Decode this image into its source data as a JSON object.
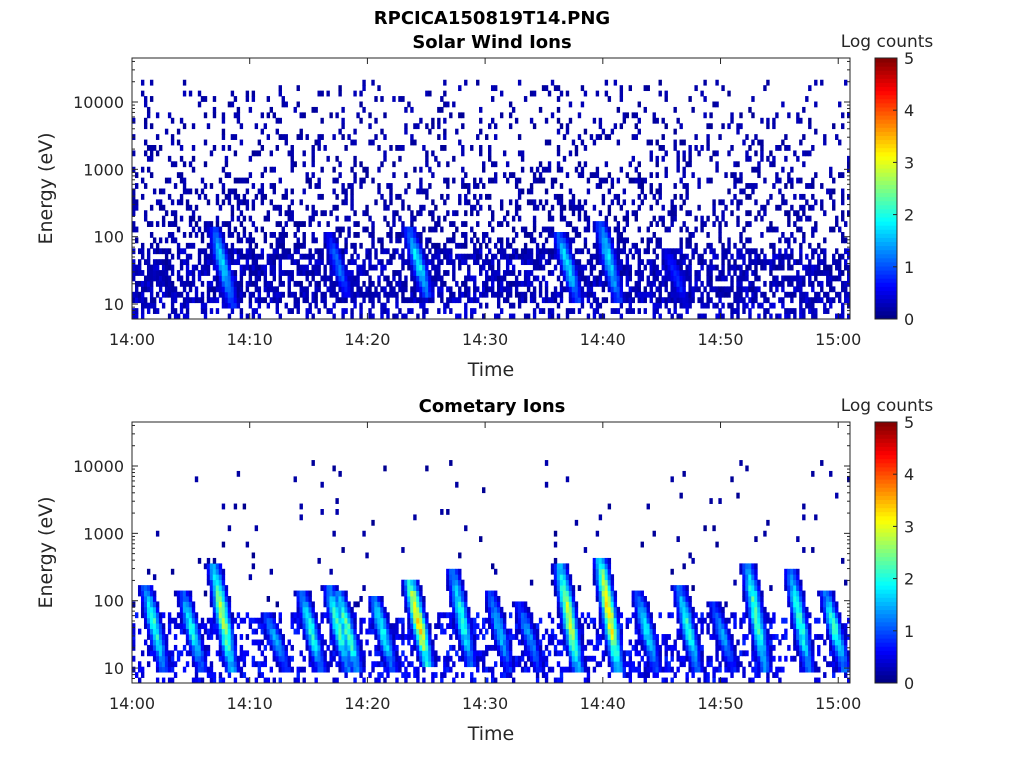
{
  "figure": {
    "title": "RPCICA150819T14.PNG"
  },
  "colorbar": {
    "label": "Log counts",
    "ticks": [
      "0",
      "1",
      "2",
      "3",
      "4",
      "5"
    ],
    "range": [
      0,
      5
    ],
    "colormap": "jet"
  },
  "chart_data": [
    {
      "type": "heatmap",
      "title": "Solar Wind Ions",
      "xlabel": "Time",
      "ylabel": "Energy (eV)",
      "x_ticks": [
        "14:00",
        "14:10",
        "14:20",
        "14:30",
        "14:40",
        "14:50",
        "15:00"
      ],
      "x_range_minutes": [
        0,
        61
      ],
      "y_scale": "log",
      "y_ticks": [
        "10",
        "100",
        "1000",
        "10000"
      ],
      "y_range": [
        6,
        45000
      ],
      "value_label": "Log counts",
      "value_range": [
        0,
        5
      ],
      "background_level": 0.3,
      "noise": {
        "energy_range": [
          10,
          20000
        ],
        "level": 0.2
      },
      "features": [
        {
          "time_min": 7.0,
          "energy_high": 130,
          "energy_low": 12,
          "peak": 1.9
        },
        {
          "time_min": 16.8,
          "energy_high": 100,
          "energy_low": 15,
          "peak": 1.3
        },
        {
          "time_min": 23.6,
          "energy_high": 120,
          "energy_low": 15,
          "peak": 2.1
        },
        {
          "time_min": 36.3,
          "energy_high": 110,
          "energy_low": 14,
          "peak": 2.0
        },
        {
          "time_min": 39.8,
          "energy_high": 160,
          "energy_low": 14,
          "peak": 2.0
        },
        {
          "time_min": 45.5,
          "energy_high": 60,
          "energy_low": 12,
          "peak": 1.0
        }
      ]
    },
    {
      "type": "heatmap",
      "title": "Cometary Ions",
      "xlabel": "Time",
      "ylabel": "Energy (eV)",
      "x_ticks": [
        "14:00",
        "14:10",
        "14:20",
        "14:30",
        "14:40",
        "14:50",
        "15:00"
      ],
      "x_range_minutes": [
        0,
        61
      ],
      "y_scale": "log",
      "y_ticks": [
        "10",
        "100",
        "1000",
        "10000"
      ],
      "y_range": [
        6,
        45000
      ],
      "value_label": "Log counts",
      "value_range": [
        0,
        5
      ],
      "background_level": 0.5,
      "noise": {
        "energy_range": [
          80,
          12000
        ],
        "level": 0.15
      },
      "features": [
        {
          "time_min": 1.2,
          "energy_high": 150,
          "energy_low": 12,
          "peak": 2.4
        },
        {
          "time_min": 4.4,
          "energy_high": 120,
          "energy_low": 12,
          "peak": 2.2
        },
        {
          "time_min": 7.0,
          "energy_high": 300,
          "energy_low": 12,
          "peak": 3.1
        },
        {
          "time_min": 11.5,
          "energy_high": 60,
          "energy_low": 12,
          "peak": 1.8
        },
        {
          "time_min": 14.5,
          "energy_high": 120,
          "energy_low": 12,
          "peak": 2.3
        },
        {
          "time_min": 16.8,
          "energy_high": 150,
          "energy_low": 12,
          "peak": 2.5
        },
        {
          "time_min": 17.6,
          "energy_high": 120,
          "energy_low": 12,
          "peak": 2.7
        },
        {
          "time_min": 20.6,
          "energy_high": 110,
          "energy_low": 12,
          "peak": 2.2
        },
        {
          "time_min": 23.6,
          "energy_high": 200,
          "energy_low": 14,
          "peak": 3.8
        },
        {
          "time_min": 27.3,
          "energy_high": 250,
          "energy_low": 14,
          "peak": 2.3
        },
        {
          "time_min": 30.5,
          "energy_high": 120,
          "energy_low": 12,
          "peak": 1.8
        },
        {
          "time_min": 33.0,
          "energy_high": 80,
          "energy_low": 12,
          "peak": 1.6
        },
        {
          "time_min": 36.4,
          "energy_high": 300,
          "energy_low": 12,
          "peak": 3.2
        },
        {
          "time_min": 39.8,
          "energy_high": 400,
          "energy_low": 12,
          "peak": 3.6
        },
        {
          "time_min": 43.0,
          "energy_high": 120,
          "energy_low": 12,
          "peak": 2.0
        },
        {
          "time_min": 46.5,
          "energy_high": 150,
          "energy_low": 12,
          "peak": 2.3
        },
        {
          "time_min": 49.5,
          "energy_high": 80,
          "energy_low": 12,
          "peak": 1.6
        },
        {
          "time_min": 52.3,
          "energy_high": 350,
          "energy_low": 12,
          "peak": 2.6
        },
        {
          "time_min": 56.0,
          "energy_high": 250,
          "energy_low": 12,
          "peak": 2.4
        },
        {
          "time_min": 59.0,
          "energy_high": 120,
          "energy_low": 12,
          "peak": 2.4
        }
      ]
    }
  ]
}
